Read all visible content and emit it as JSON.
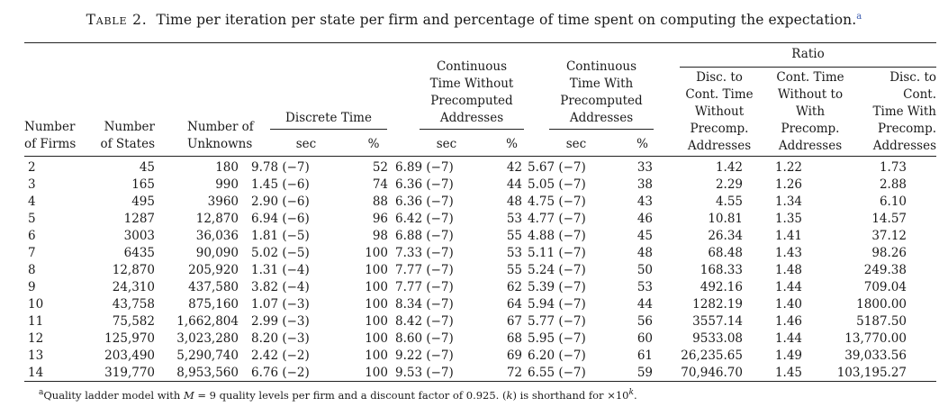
{
  "caption": {
    "label": "Table 2.",
    "text": "Time per iteration per state per firm and percentage of time spent on computing the expectation.",
    "marker": "a"
  },
  "headers": {
    "num_firms": [
      "Number",
      "of Firms"
    ],
    "num_states": [
      "Number",
      "of States"
    ],
    "num_unknowns": [
      "Number of",
      "Unknowns"
    ],
    "discrete_time": "Discrete Time",
    "ct_without": [
      "Continuous",
      "Time Without",
      "Precomputed",
      "Addresses"
    ],
    "ct_with": [
      "Continuous",
      "Time With",
      "Precomputed",
      "Addresses"
    ],
    "ratio": "Ratio",
    "ratio_1": [
      "Disc. to",
      "Cont. Time",
      "Without",
      "Precomp.",
      "Addresses"
    ],
    "ratio_2": [
      "Cont. Time",
      "Without to",
      "With",
      "Precomp.",
      "Addresses"
    ],
    "ratio_3": [
      "Disc. to",
      "Cont.",
      "Time With",
      "Precomp.",
      "Addresses"
    ],
    "sec": "sec",
    "pct": "%"
  },
  "rows": [
    [
      "2",
      "45",
      "180",
      "9.78 (−7)",
      "52",
      "6.89 (−7)",
      "42",
      "5.67 (−7)",
      "33",
      "1.42",
      "1.22",
      "1.73"
    ],
    [
      "3",
      "165",
      "990",
      "1.45 (−6)",
      "74",
      "6.36 (−7)",
      "44",
      "5.05 (−7)",
      "38",
      "2.29",
      "1.26",
      "2.88"
    ],
    [
      "4",
      "495",
      "3960",
      "2.90 (−6)",
      "88",
      "6.36 (−7)",
      "48",
      "4.75 (−7)",
      "43",
      "4.55",
      "1.34",
      "6.10"
    ],
    [
      "5",
      "1287",
      "12,870",
      "6.94 (−6)",
      "96",
      "6.42 (−7)",
      "53",
      "4.77 (−7)",
      "46",
      "10.81",
      "1.35",
      "14.57"
    ],
    [
      "6",
      "3003",
      "36,036",
      "1.81 (−5)",
      "98",
      "6.88 (−7)",
      "55",
      "4.88 (−7)",
      "45",
      "26.34",
      "1.41",
      "37.12"
    ],
    [
      "7",
      "6435",
      "90,090",
      "5.02 (−5)",
      "100",
      "7.33 (−7)",
      "53",
      "5.11 (−7)",
      "48",
      "68.48",
      "1.43",
      "98.26"
    ],
    [
      "8",
      "12,870",
      "205,920",
      "1.31 (−4)",
      "100",
      "7.77 (−7)",
      "55",
      "5.24 (−7)",
      "50",
      "168.33",
      "1.48",
      "249.38"
    ],
    [
      "9",
      "24,310",
      "437,580",
      "3.82 (−4)",
      "100",
      "7.77 (−7)",
      "62",
      "5.39 (−7)",
      "53",
      "492.16",
      "1.44",
      "709.04"
    ],
    [
      "10",
      "43,758",
      "875,160",
      "1.07 (−3)",
      "100",
      "8.34 (−7)",
      "64",
      "5.94 (−7)",
      "44",
      "1282.19",
      "1.40",
      "1800.00"
    ],
    [
      "11",
      "75,582",
      "1,662,804",
      "2.99 (−3)",
      "100",
      "8.42 (−7)",
      "67",
      "5.77 (−7)",
      "56",
      "3557.14",
      "1.46",
      "5187.50"
    ],
    [
      "12",
      "125,970",
      "3,023,280",
      "8.20 (−3)",
      "100",
      "8.60 (−7)",
      "68",
      "5.95 (−7)",
      "60",
      "9533.08",
      "1.44",
      "13,770.00"
    ],
    [
      "13",
      "203,490",
      "5,290,740",
      "2.42 (−2)",
      "100",
      "9.22 (−7)",
      "69",
      "6.20 (−7)",
      "61",
      "26,235.65",
      "1.49",
      "39,033.56"
    ],
    [
      "14",
      "319,770",
      "8,953,560",
      "6.76 (−2)",
      "100",
      "9.53 (−7)",
      "72",
      "6.55 (−7)",
      "59",
      "70,946.70",
      "1.45",
      "103,195.27"
    ]
  ],
  "footnote": {
    "marker": "a",
    "text_1": "Quality ladder model with ",
    "math_m": "M",
    "text_2": " = 9 quality levels per firm and a discount factor of 0.925. (",
    "math_k": "k",
    "text_3": ") is shorthand for ×10",
    "sup_k": "k",
    "text_4": "."
  }
}
